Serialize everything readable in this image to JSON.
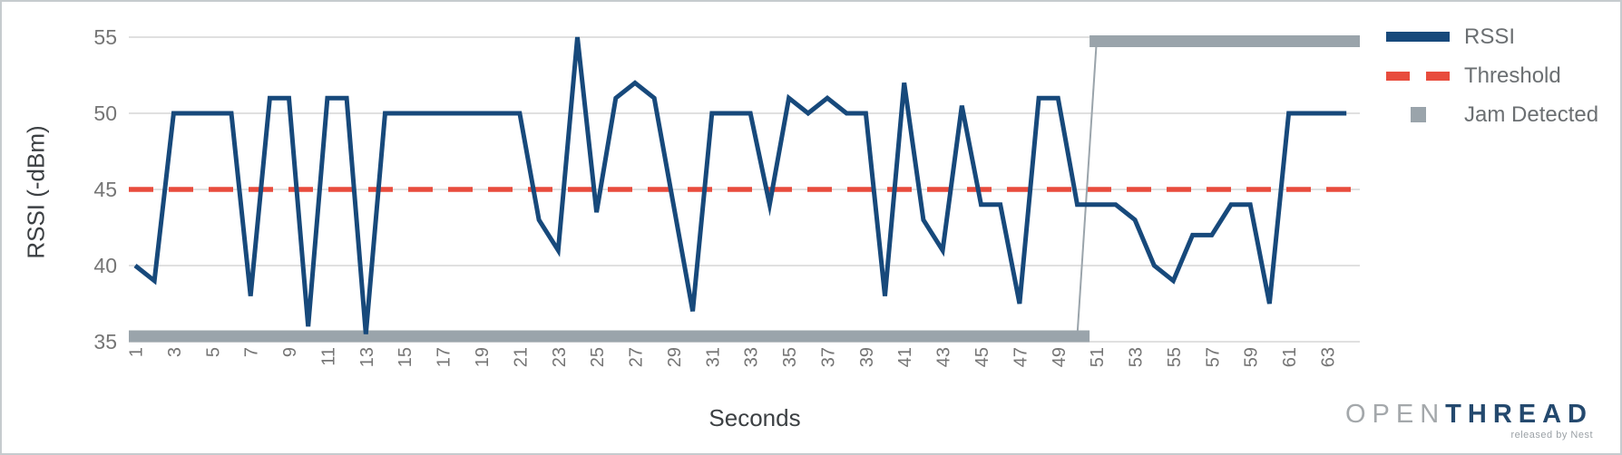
{
  "chart_data": {
    "type": "line",
    "title": "",
    "xlabel": "Seconds",
    "ylabel": "RSSI (-dBm)",
    "x_first": 1,
    "x_step": 1,
    "n_points": 64,
    "xlim": [
      1,
      64
    ],
    "ylim": [
      35,
      55
    ],
    "grid": true,
    "legend_position": "right-top",
    "y_ticks": [
      55,
      50,
      45,
      40,
      35
    ],
    "x_ticks": [
      1,
      3,
      5,
      7,
      9,
      11,
      13,
      15,
      17,
      19,
      21,
      23,
      25,
      27,
      29,
      31,
      33,
      35,
      37,
      39,
      41,
      43,
      45,
      47,
      49,
      51,
      53,
      55,
      57,
      59,
      61,
      63
    ],
    "series": [
      {
        "name": "RSSI",
        "type": "line",
        "color": "#17497B",
        "values": [
          40,
          39,
          50,
          50,
          50,
          50,
          38,
          51,
          51,
          36,
          51,
          51,
          35.5,
          50,
          50,
          50,
          50,
          50,
          50,
          50,
          50,
          43,
          41,
          55,
          43.5,
          51,
          52,
          51,
          44,
          37,
          50,
          50,
          50,
          44,
          51,
          50,
          51,
          50,
          50,
          38,
          52,
          43,
          41,
          50.5,
          44,
          44,
          37.5,
          51,
          51,
          44,
          44,
          44,
          43,
          40,
          39,
          42,
          42,
          44,
          44,
          37.5,
          50,
          50,
          50,
          50
        ]
      },
      {
        "name": "Threshold",
        "type": "dashed-line",
        "color": "#E84C3D",
        "value": 45
      },
      {
        "name": "Jam Detected",
        "type": "step-bar",
        "color": "#9AA4AB",
        "segments": [
          {
            "from_second": 1,
            "to_second": 50,
            "value": 35
          },
          {
            "from_second": 51,
            "to_second": 64,
            "value": 55
          }
        ]
      }
    ],
    "colors": {
      "grid": "#D6D6D6",
      "tick_text": "#757575",
      "axis_title_text": "#3C4043"
    }
  },
  "legend": {
    "items": [
      {
        "label": "RSSI",
        "swatch": "line",
        "color": "#17497B"
      },
      {
        "label": "Threshold",
        "swatch": "dashed",
        "color": "#E84C3D"
      },
      {
        "label": "Jam Detected",
        "swatch": "square",
        "color": "#9AA4AB"
      }
    ]
  },
  "branding": {
    "logo_primary": "OPEN",
    "logo_secondary": "THREAD",
    "tagline": "released by Nest",
    "logo_primary_color": "#A4A8AB",
    "logo_secondary_color": "#24496E"
  }
}
